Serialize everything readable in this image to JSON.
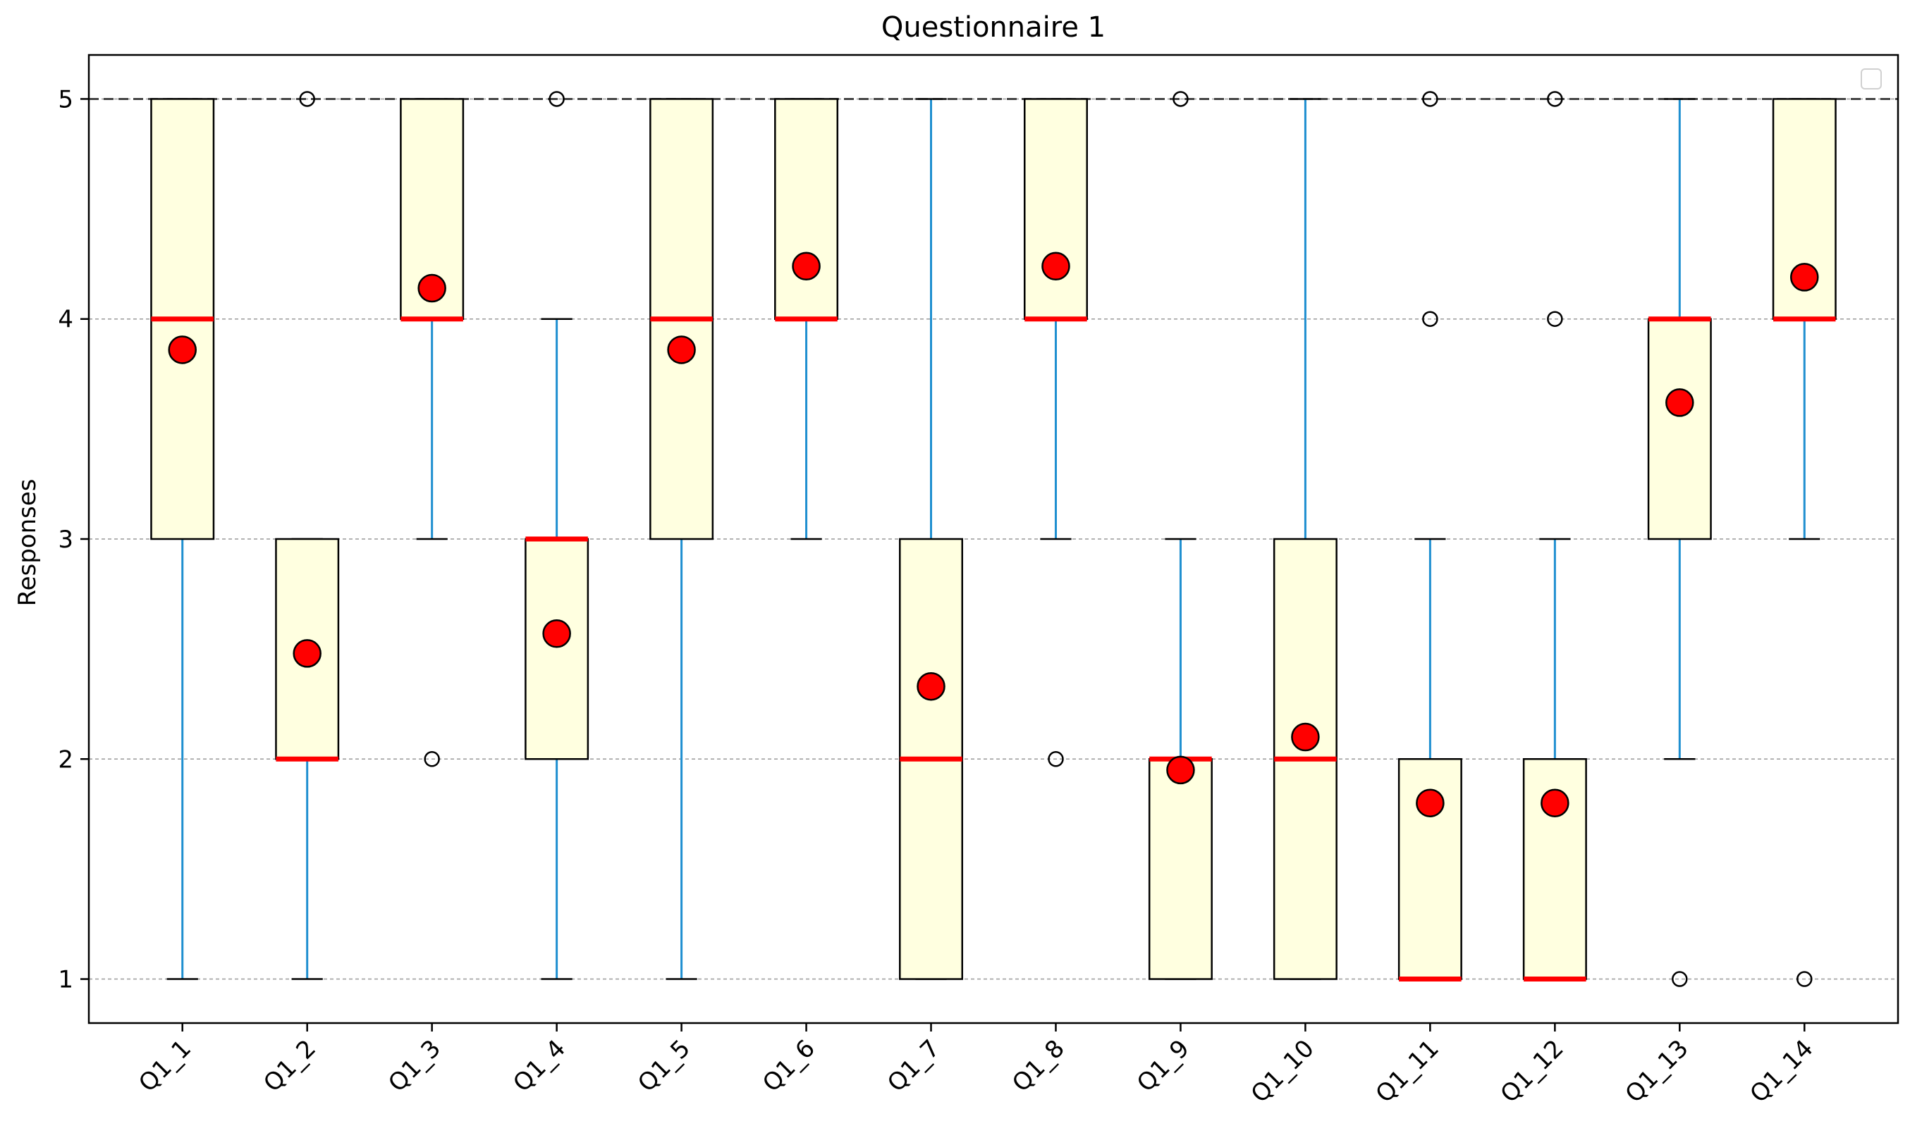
{
  "chart_data": {
    "type": "box",
    "title": "Questionnaire 1",
    "xlabel": "",
    "ylabel": "Responses",
    "ylim": [
      0.8,
      5.2
    ],
    "yticks": [
      1,
      2,
      3,
      4,
      5
    ],
    "grid": "horizontal dashed",
    "reference_line": 5,
    "legend": {
      "placement": "top-right",
      "entries": []
    },
    "colors": {
      "box_fill": "#ffffe0",
      "box_edge": "#000000",
      "whisker": "#1f8fd0",
      "median": "#ff0000",
      "mean_marker": "#ff0000",
      "grid": "#999999"
    },
    "categories": [
      "Q1_1",
      "Q1_2",
      "Q1_3",
      "Q1_4",
      "Q1_5",
      "Q1_6",
      "Q1_7",
      "Q1_8",
      "Q1_9",
      "Q1_10",
      "Q1_11",
      "Q1_12",
      "Q1_13",
      "Q1_14"
    ],
    "boxes": [
      {
        "q1": 3,
        "median": 4,
        "q3": 5,
        "whislo": 1,
        "whishi": 5,
        "mean": 3.86,
        "fliers": []
      },
      {
        "q1": 2,
        "median": 2,
        "q3": 3,
        "whislo": 1,
        "whishi": 3,
        "mean": 2.48,
        "fliers": [
          5
        ]
      },
      {
        "q1": 4,
        "median": 4,
        "q3": 5,
        "whislo": 3,
        "whishi": 5,
        "mean": 4.14,
        "fliers": [
          2
        ]
      },
      {
        "q1": 2,
        "median": 3,
        "q3": 3,
        "whislo": 1,
        "whishi": 4,
        "mean": 2.57,
        "fliers": [
          5
        ]
      },
      {
        "q1": 3,
        "median": 4,
        "q3": 5,
        "whislo": 1,
        "whishi": 5,
        "mean": 3.86,
        "fliers": []
      },
      {
        "q1": 4,
        "median": 4,
        "q3": 5,
        "whislo": 3,
        "whishi": 5,
        "mean": 4.24,
        "fliers": []
      },
      {
        "q1": 1,
        "median": 2,
        "q3": 3,
        "whislo": 1,
        "whishi": 5,
        "mean": 2.33,
        "fliers": []
      },
      {
        "q1": 4,
        "median": 4,
        "q3": 5,
        "whislo": 3,
        "whishi": 5,
        "mean": 4.24,
        "fliers": [
          2
        ]
      },
      {
        "q1": 1,
        "median": 2,
        "q3": 2,
        "whislo": 1,
        "whishi": 3,
        "mean": 1.95,
        "fliers": [
          5
        ]
      },
      {
        "q1": 1,
        "median": 2,
        "q3": 3,
        "whislo": 1,
        "whishi": 5,
        "mean": 2.1,
        "fliers": []
      },
      {
        "q1": 1,
        "median": 1,
        "q3": 2,
        "whislo": 1,
        "whishi": 3,
        "mean": 1.8,
        "fliers": [
          4,
          5
        ]
      },
      {
        "q1": 1,
        "median": 1,
        "q3": 2,
        "whislo": 1,
        "whishi": 3,
        "mean": 1.8,
        "fliers": [
          4,
          5
        ]
      },
      {
        "q1": 3,
        "median": 4,
        "q3": 4,
        "whislo": 2,
        "whishi": 5,
        "mean": 3.62,
        "fliers": [
          1
        ]
      },
      {
        "q1": 4,
        "median": 4,
        "q3": 5,
        "whislo": 3,
        "whishi": 5,
        "mean": 4.19,
        "fliers": [
          1
        ]
      }
    ]
  }
}
